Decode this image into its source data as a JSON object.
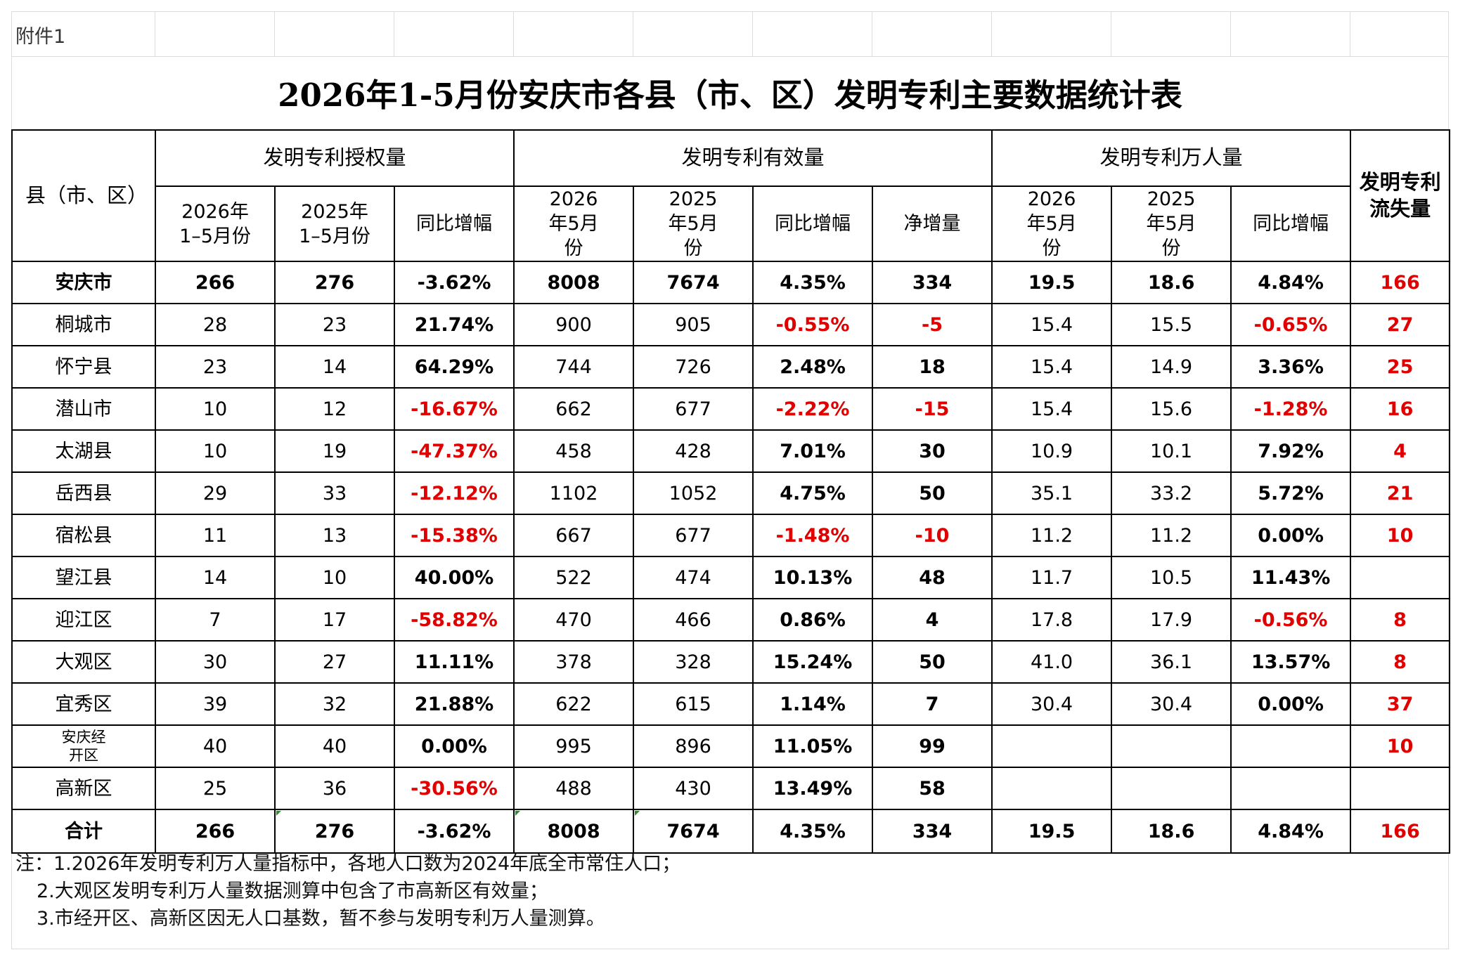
{
  "attachment_label": "附件1",
  "title": "2026年1-5月份安庆市各县（市、区）发明专利主要数据统计表",
  "header": {
    "region": "县（市、区）",
    "groups": {
      "authorized": "发明专利授权量",
      "valid": "发明专利有效量",
      "per10k": "发明专利万人量",
      "loss": "发明专利流失量"
    },
    "cols": {
      "auth_2026": "2026年1–5月份",
      "auth_2025": "2025年1–5月份",
      "auth_yoy": "同比增幅",
      "valid_2026": "2026年5月份",
      "valid_2025": "2025年5月份",
      "valid_yoy": "同比增幅",
      "valid_net": "净增量",
      "per_2026": "2026年5月份",
      "per_2025": "2025年5月份",
      "per_yoy": "同比增幅"
    }
  },
  "rows": [
    {
      "name": "安庆市",
      "auth_2026": "266",
      "auth_2025": "276",
      "auth_yoy": "-3.62%",
      "valid_2026": "8008",
      "valid_2025": "7674",
      "valid_yoy": "4.35%",
      "valid_net": "334",
      "per_2026": "19.5",
      "per_2025": "18.6",
      "per_yoy": "4.84%",
      "loss": "166"
    },
    {
      "name": "桐城市",
      "auth_2026": "28",
      "auth_2025": "23",
      "auth_yoy": "21.74%",
      "valid_2026": "900",
      "valid_2025": "905",
      "valid_yoy": "-0.55%",
      "valid_net": "-5",
      "per_2026": "15.4",
      "per_2025": "15.5",
      "per_yoy": "-0.65%",
      "loss": "27"
    },
    {
      "name": "怀宁县",
      "auth_2026": "23",
      "auth_2025": "14",
      "auth_yoy": "64.29%",
      "valid_2026": "744",
      "valid_2025": "726",
      "valid_yoy": "2.48%",
      "valid_net": "18",
      "per_2026": "15.4",
      "per_2025": "14.9",
      "per_yoy": "3.36%",
      "loss": "25"
    },
    {
      "name": "潜山市",
      "auth_2026": "10",
      "auth_2025": "12",
      "auth_yoy": "-16.67%",
      "valid_2026": "662",
      "valid_2025": "677",
      "valid_yoy": "-2.22%",
      "valid_net": "-15",
      "per_2026": "15.4",
      "per_2025": "15.6",
      "per_yoy": "-1.28%",
      "loss": "16"
    },
    {
      "name": "太湖县",
      "auth_2026": "10",
      "auth_2025": "19",
      "auth_yoy": "-47.37%",
      "valid_2026": "458",
      "valid_2025": "428",
      "valid_yoy": "7.01%",
      "valid_net": "30",
      "per_2026": "10.9",
      "per_2025": "10.1",
      "per_yoy": "7.92%",
      "loss": "4"
    },
    {
      "name": "岳西县",
      "auth_2026": "29",
      "auth_2025": "33",
      "auth_yoy": "-12.12%",
      "valid_2026": "1102",
      "valid_2025": "1052",
      "valid_yoy": "4.75%",
      "valid_net": "50",
      "per_2026": "35.1",
      "per_2025": "33.2",
      "per_yoy": "5.72%",
      "loss": "21"
    },
    {
      "name": "宿松县",
      "auth_2026": "11",
      "auth_2025": "13",
      "auth_yoy": "-15.38%",
      "valid_2026": "667",
      "valid_2025": "677",
      "valid_yoy": "-1.48%",
      "valid_net": "-10",
      "per_2026": "11.2",
      "per_2025": "11.2",
      "per_yoy": "0.00%",
      "loss": "10"
    },
    {
      "name": "望江县",
      "auth_2026": "14",
      "auth_2025": "10",
      "auth_yoy": "40.00%",
      "valid_2026": "522",
      "valid_2025": "474",
      "valid_yoy": "10.13%",
      "valid_net": "48",
      "per_2026": "11.7",
      "per_2025": "10.5",
      "per_yoy": "11.43%",
      "loss": ""
    },
    {
      "name": "迎江区",
      "auth_2026": "7",
      "auth_2025": "17",
      "auth_yoy": "-58.82%",
      "valid_2026": "470",
      "valid_2025": "466",
      "valid_yoy": "0.86%",
      "valid_net": "4",
      "per_2026": "17.8",
      "per_2025": "17.9",
      "per_yoy": "-0.56%",
      "loss": "8"
    },
    {
      "name": "大观区",
      "auth_2026": "30",
      "auth_2025": "27",
      "auth_yoy": "11.11%",
      "valid_2026": "378",
      "valid_2025": "328",
      "valid_yoy": "15.24%",
      "valid_net": "50",
      "per_2026": "41.0",
      "per_2025": "36.1",
      "per_yoy": "13.57%",
      "loss": "8"
    },
    {
      "name": "宜秀区",
      "auth_2026": "39",
      "auth_2025": "32",
      "auth_yoy": "21.88%",
      "valid_2026": "622",
      "valid_2025": "615",
      "valid_yoy": "1.14%",
      "valid_net": "7",
      "per_2026": "30.4",
      "per_2025": "30.4",
      "per_yoy": "0.00%",
      "loss": "37"
    },
    {
      "name": "安庆经开区",
      "auth_2026": "40",
      "auth_2025": "40",
      "auth_yoy": "0.00%",
      "valid_2026": "995",
      "valid_2025": "896",
      "valid_yoy": "11.05%",
      "valid_net": "99",
      "per_2026": "",
      "per_2025": "",
      "per_yoy": "",
      "loss": "10"
    },
    {
      "name": "高新区",
      "auth_2026": "25",
      "auth_2025": "36",
      "auth_yoy": "-30.56%",
      "valid_2026": "488",
      "valid_2025": "430",
      "valid_yoy": "13.49%",
      "valid_net": "58",
      "per_2026": "",
      "per_2025": "",
      "per_yoy": "",
      "loss": ""
    },
    {
      "name": "合计",
      "auth_2026": "266",
      "auth_2025": "276",
      "auth_yoy": "-3.62%",
      "valid_2026": "8008",
      "valid_2025": "7674",
      "valid_yoy": "4.35%",
      "valid_net": "334",
      "per_2026": "19.5",
      "per_2025": "18.6",
      "per_yoy": "4.84%",
      "loss": "166"
    }
  ],
  "notes": [
    "注：1.2026年发明专利万人量指标中，各地人口数为2024年底全市常住人口；",
    "2.大观区发明专利万人量数据测算中包含了市高新区有效量；",
    "3.市经开区、高新区因无人口基数，暂不参与发明专利万人量测算。"
  ],
  "colors": {
    "negative": "#e00000",
    "loss": "#e00000",
    "text": "#000000"
  }
}
